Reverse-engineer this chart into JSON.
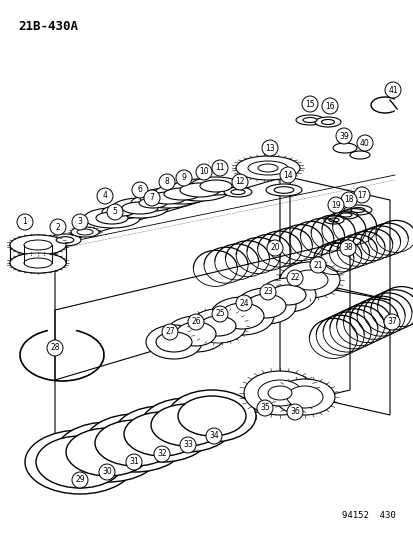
{
  "title": "21B-430A",
  "footer": "94152  430",
  "bg_color": "#ffffff",
  "line_color": "#000000",
  "fig_width": 4.14,
  "fig_height": 5.33,
  "dpi": 100
}
